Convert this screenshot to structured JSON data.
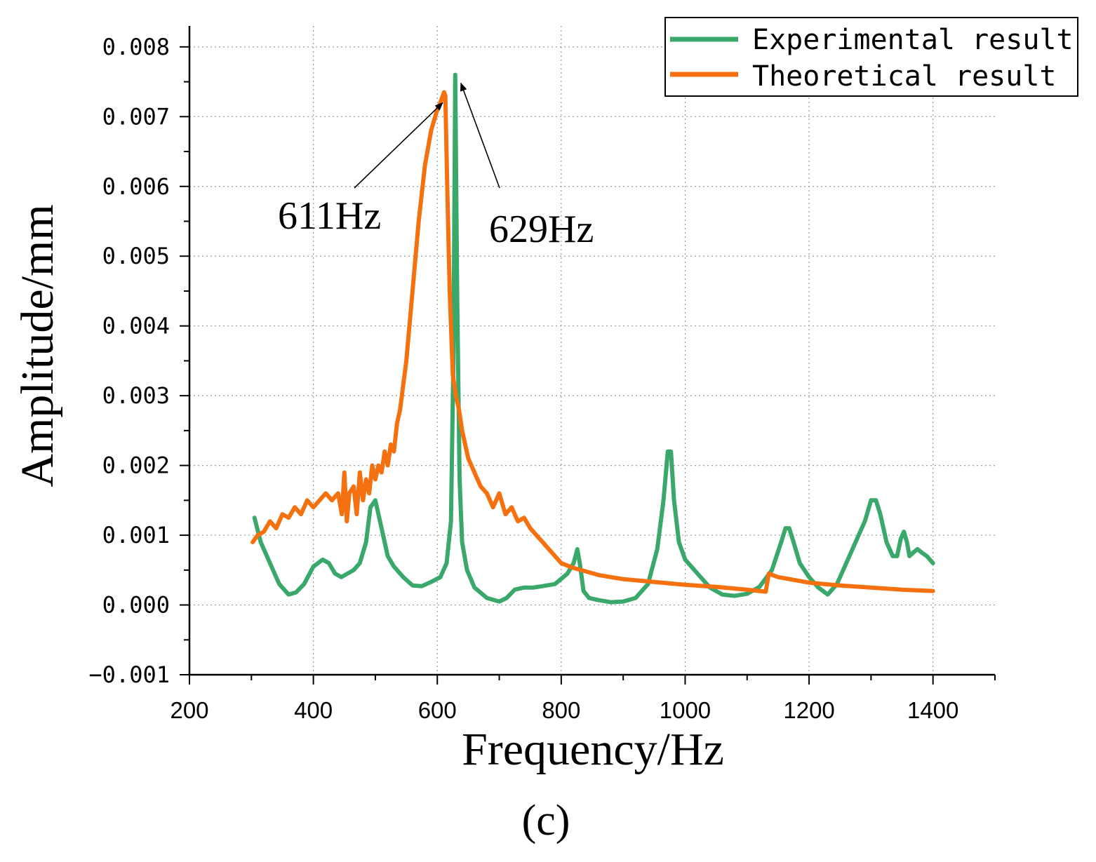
{
  "chart_data": {
    "type": "line",
    "title": "",
    "xlabel": "Frequency/Hz",
    "ylabel": "Amplitude/mm",
    "xlim": [
      200,
      1500
    ],
    "ylim": [
      -0.001,
      0.0083
    ],
    "xticks": [
      200,
      400,
      600,
      800,
      1000,
      1200,
      1400
    ],
    "xtick_labels": [
      "200",
      "400",
      "600",
      "800",
      "1000",
      "1200",
      "1400"
    ],
    "yticks": [
      -0.001,
      0.0,
      0.001,
      0.002,
      0.003,
      0.004,
      0.005,
      0.006,
      0.007,
      0.008
    ],
    "ytick_labels": [
      "−0.001",
      "0.000",
      "0.001",
      "0.002",
      "0.003",
      "0.004",
      "0.005",
      "0.006",
      "0.007",
      "0.008"
    ],
    "grid": true,
    "legend_position": "top-right",
    "series": [
      {
        "name": "Experimental result",
        "color": "#3aa86b",
        "x": [
          305,
          315,
          330,
          345,
          360,
          372,
          385,
          400,
          415,
          425,
          435,
          445,
          455,
          465,
          475,
          485,
          492,
          500,
          510,
          520,
          530,
          545,
          560,
          575,
          590,
          605,
          615,
          622,
          626,
          629,
          632,
          636,
          640,
          648,
          660,
          680,
          700,
          712,
          725,
          740,
          755,
          770,
          790,
          810,
          820,
          826,
          830,
          836,
          845,
          860,
          880,
          900,
          920,
          940,
          955,
          965,
          972,
          977,
          982,
          990,
          1000,
          1020,
          1040,
          1060,
          1080,
          1100,
          1120,
          1140,
          1155,
          1162,
          1168,
          1175,
          1185,
          1200,
          1215,
          1230,
          1245,
          1260,
          1275,
          1290,
          1300,
          1308,
          1315,
          1325,
          1335,
          1342,
          1348,
          1353,
          1358,
          1362,
          1368,
          1375,
          1382,
          1390,
          1400
        ],
        "values": [
          0.00125,
          0.0009,
          0.0006,
          0.0003,
          0.00015,
          0.00018,
          0.0003,
          0.00055,
          0.00065,
          0.0006,
          0.00045,
          0.0004,
          0.00045,
          0.0005,
          0.0006,
          0.0009,
          0.0014,
          0.0015,
          0.0011,
          0.0007,
          0.00055,
          0.0004,
          0.00028,
          0.00027,
          0.00033,
          0.0004,
          0.0006,
          0.0012,
          0.0035,
          0.0076,
          0.0045,
          0.0018,
          0.0009,
          0.0005,
          0.00025,
          0.0001,
          5e-05,
          0.0001,
          0.00022,
          0.00025,
          0.00025,
          0.00027,
          0.0003,
          0.00045,
          0.0006,
          0.0008,
          0.0006,
          0.0002,
          0.0001,
          7e-05,
          4e-05,
          5e-05,
          0.0001,
          0.0003,
          0.0008,
          0.0015,
          0.0022,
          0.0022,
          0.0015,
          0.0009,
          0.00065,
          0.00045,
          0.00025,
          0.00015,
          0.00013,
          0.00016,
          0.00026,
          0.0005,
          0.0009,
          0.0011,
          0.0011,
          0.0009,
          0.0006,
          0.0004,
          0.00025,
          0.00015,
          0.0003,
          0.0006,
          0.0009,
          0.0012,
          0.0015,
          0.0015,
          0.0013,
          0.0009,
          0.0007,
          0.0007,
          0.00095,
          0.00105,
          0.0009,
          0.0007,
          0.00075,
          0.0008,
          0.00075,
          0.0007,
          0.0006
        ]
      },
      {
        "name": "Theoretical result",
        "color": "#f5710f",
        "x": [
          302,
          310,
          320,
          330,
          340,
          350,
          360,
          370,
          380,
          390,
          400,
          410,
          420,
          430,
          440,
          446,
          450,
          454,
          458,
          465,
          470,
          475,
          480,
          485,
          490,
          495,
          500,
          505,
          510,
          515,
          520,
          525,
          530,
          535,
          540,
          550,
          560,
          570,
          580,
          590,
          600,
          605,
          611,
          613,
          616,
          620,
          625,
          630,
          635,
          640,
          650,
          660,
          670,
          680,
          690,
          700,
          710,
          720,
          730,
          740,
          750,
          760,
          770,
          780,
          790,
          800,
          820,
          840,
          860,
          880,
          900,
          950,
          1000,
          1050,
          1100,
          1130,
          1135,
          1150,
          1200,
          1250,
          1300,
          1350,
          1400
        ],
        "values": [
          0.0009,
          0.001,
          0.00105,
          0.0012,
          0.0011,
          0.0013,
          0.00125,
          0.0014,
          0.0013,
          0.0015,
          0.0014,
          0.0015,
          0.0016,
          0.0015,
          0.0016,
          0.0013,
          0.0019,
          0.0012,
          0.0016,
          0.0017,
          0.0013,
          0.0019,
          0.0015,
          0.0018,
          0.0016,
          0.002,
          0.0018,
          0.002,
          0.0019,
          0.0022,
          0.002,
          0.0023,
          0.0022,
          0.0026,
          0.0028,
          0.0035,
          0.0045,
          0.0055,
          0.0063,
          0.0068,
          0.0071,
          0.0072,
          0.00735,
          0.0073,
          0.006,
          0.0045,
          0.0033,
          0.003,
          0.0028,
          0.0025,
          0.0021,
          0.0019,
          0.0017,
          0.0016,
          0.0014,
          0.0016,
          0.0013,
          0.0014,
          0.0012,
          0.00125,
          0.0011,
          0.001,
          0.0009,
          0.0008,
          0.0007,
          0.0006,
          0.00053,
          0.00048,
          0.00043,
          0.0004,
          0.00037,
          0.00033,
          0.00029,
          0.00026,
          0.00022,
          0.00019,
          0.00045,
          0.0004,
          0.00032,
          0.00028,
          0.00025,
          0.00022,
          0.0002
        ]
      }
    ],
    "annotations": [
      {
        "text": "611Hz",
        "target_x": 611,
        "target_y": 0.0073
      },
      {
        "text": "629Hz",
        "target_x": 629,
        "target_y": 0.0076
      }
    ],
    "caption": "(c)"
  }
}
